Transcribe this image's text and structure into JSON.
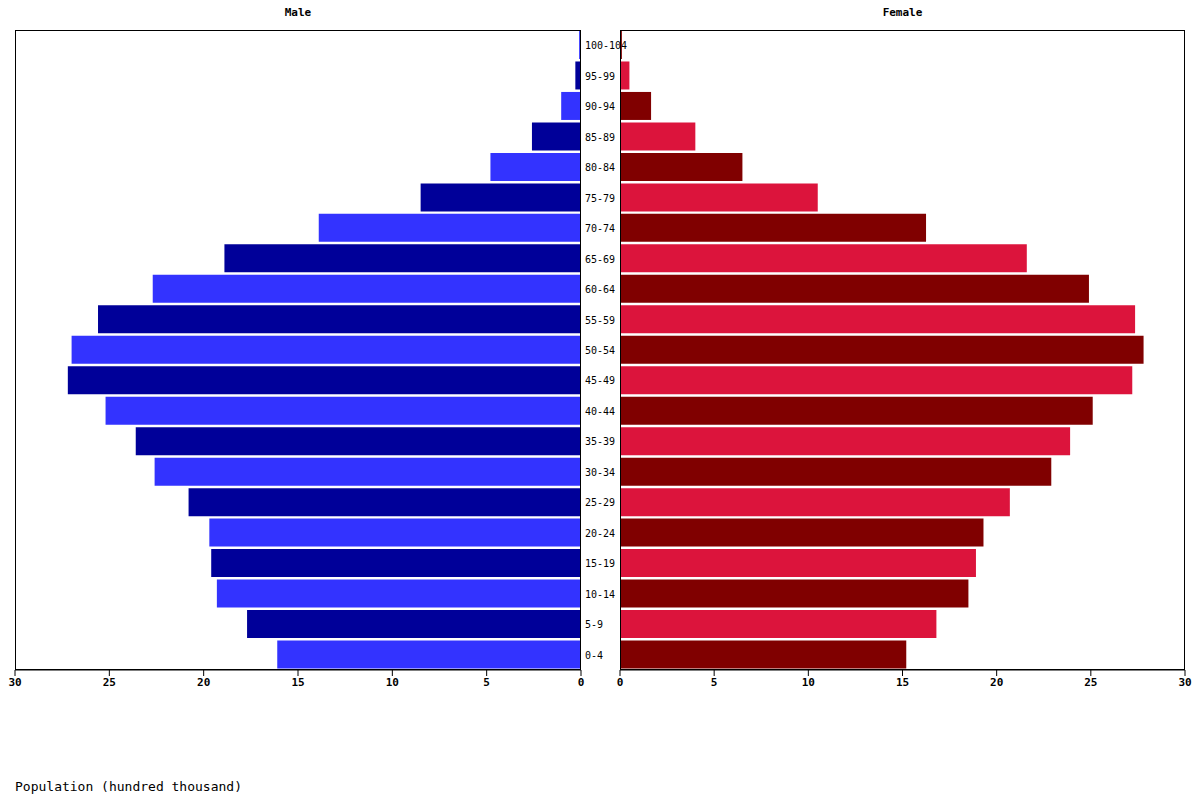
{
  "chart_data": [
    {
      "type": "bar",
      "orientation": "horizontal",
      "title": "Male",
      "xlabel": "Population (hundred thousand)",
      "categories": [
        "100-104",
        "95-99",
        "90-94",
        "85-89",
        "80-84",
        "75-79",
        "70-74",
        "65-69",
        "60-64",
        "55-59",
        "50-54",
        "45-49",
        "40-44",
        "35-39",
        "30-34",
        "25-29",
        "20-24",
        "15-19",
        "10-14",
        "5-9",
        "0-4"
      ],
      "values": [
        0.1,
        0.3,
        1.05,
        2.6,
        4.8,
        8.5,
        13.9,
        18.9,
        22.7,
        25.6,
        27.0,
        27.2,
        25.2,
        23.6,
        22.6,
        20.8,
        19.7,
        19.6,
        19.3,
        17.7,
        16.1
      ],
      "colors": [
        "#3333ff",
        "#000099",
        "#3333ff",
        "#000099",
        "#3333ff",
        "#000099",
        "#3333ff",
        "#000099",
        "#3333ff",
        "#000099",
        "#3333ff",
        "#000099",
        "#3333ff",
        "#000099",
        "#3333ff",
        "#000099",
        "#3333ff",
        "#000099",
        "#3333ff",
        "#000099",
        "#3333ff"
      ],
      "xlim": [
        30,
        0
      ],
      "xticks": [
        30,
        25,
        20,
        15,
        10,
        5,
        0
      ]
    },
    {
      "type": "bar",
      "orientation": "horizontal",
      "title": "Female",
      "categories": [
        "100-104",
        "95-99",
        "90-94",
        "85-89",
        "80-84",
        "75-79",
        "70-74",
        "65-69",
        "60-64",
        "55-59",
        "50-54",
        "45-49",
        "40-44",
        "35-39",
        "30-34",
        "25-29",
        "20-24",
        "15-19",
        "10-14",
        "5-9",
        "0-4"
      ],
      "values": [
        0.1,
        0.5,
        1.65,
        4.0,
        6.5,
        10.5,
        16.25,
        21.6,
        24.9,
        27.35,
        27.8,
        27.2,
        25.1,
        23.9,
        22.9,
        20.7,
        19.3,
        18.9,
        18.5,
        16.8,
        15.2
      ],
      "colors": [
        "#800000",
        "#dc143c",
        "#800000",
        "#dc143c",
        "#800000",
        "#dc143c",
        "#800000",
        "#dc143c",
        "#800000",
        "#dc143c",
        "#800000",
        "#dc143c",
        "#800000",
        "#dc143c",
        "#800000",
        "#dc143c",
        "#800000",
        "#dc143c",
        "#800000",
        "#dc143c",
        "#800000"
      ],
      "xlim": [
        0,
        30
      ],
      "xticks": [
        0,
        5,
        10,
        15,
        20,
        25,
        30
      ]
    }
  ]
}
